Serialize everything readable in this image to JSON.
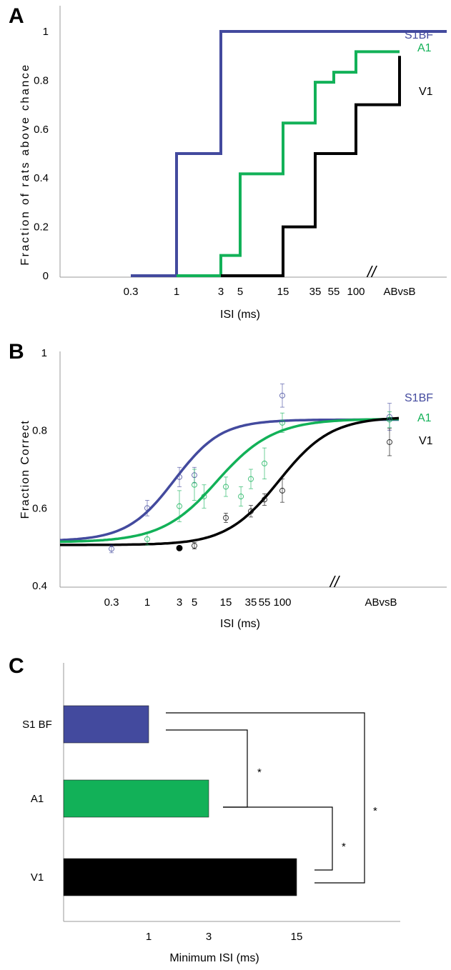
{
  "colors": {
    "s1bf": "#434a9e",
    "a1": "#12b158",
    "v1": "#000000",
    "axis": "#999999"
  },
  "chart_data": [
    {
      "panel": "A",
      "type": "line",
      "step": true,
      "ylabel": "Fraction of rats above chance",
      "xlabel": "ISI (ms)",
      "ylim": [
        0,
        1
      ],
      "yticks": [
        "0",
        "0.2",
        "0.4",
        "0.6",
        "0.8",
        "1"
      ],
      "x_categories": [
        "0.3",
        "1",
        "3",
        "5",
        "15",
        "35",
        "55",
        "100",
        "ABvsB"
      ],
      "axis_break": "//",
      "series": [
        {
          "name": "S1BF",
          "color_key": "s1bf",
          "x": [
            0.3,
            1,
            3,
            5,
            15,
            35,
            55,
            100,
            "ABvsB"
          ],
          "y": [
            0,
            0.5,
            1,
            1,
            1,
            1,
            1,
            1,
            1
          ]
        },
        {
          "name": "A1",
          "color_key": "a1",
          "x": [
            1,
            3,
            5,
            15,
            35,
            55,
            100,
            "ABvsB"
          ],
          "y": [
            0,
            0.083,
            0.417,
            0.625,
            0.792,
            0.833,
            0.917,
            0.917
          ]
        },
        {
          "name": "V1",
          "color_key": "v1",
          "x": [
            3,
            15,
            35,
            100,
            "ABvsB"
          ],
          "y": [
            0,
            0.2,
            0.5,
            0.7,
            0.9
          ]
        }
      ]
    },
    {
      "panel": "B",
      "type": "scatter",
      "ylabel": "Fraction Correct",
      "xlabel": "ISI (ms)",
      "ylim": [
        0.4,
        1
      ],
      "yticks": [
        "0.4",
        "0.6",
        "0.8",
        "1"
      ],
      "x_categories": [
        "0.3",
        "1",
        "3",
        "5",
        "15",
        "35",
        "55",
        "100",
        "ABvsB"
      ],
      "axis_break": "//",
      "series": [
        {
          "name": "S1BF",
          "color_key": "s1bf",
          "x": [
            0.3,
            1,
            3,
            5,
            100,
            "ABvsB"
          ],
          "y": [
            0.495,
            0.6,
            0.68,
            0.685,
            0.89,
            0.835
          ],
          "err": [
            0.01,
            0.02,
            0.025,
            0.02,
            0.03,
            0.035
          ],
          "fit_start": 0.515,
          "fit_end": 0.828,
          "fit_mid_logx": 0.4,
          "fit_scale": 0.35
        },
        {
          "name": "A1",
          "color_key": "a1",
          "x": [
            1,
            3,
            5,
            7,
            15,
            25,
            35,
            55,
            100,
            "ABvsB"
          ],
          "y": [
            0.52,
            0.605,
            0.66,
            0.63,
            0.655,
            0.63,
            0.675,
            0.715,
            0.82,
            0.828
          ],
          "err": [
            0.015,
            0.04,
            0.04,
            0.03,
            0.025,
            0.025,
            0.025,
            0.04,
            0.025,
            0.02
          ],
          "fit_start": 0.512,
          "fit_end": 0.83,
          "fit_mid_logx": 1.05,
          "fit_scale": 0.42
        },
        {
          "name": "V1",
          "color_key": "v1",
          "x": [
            3,
            5,
            15,
            35,
            55,
            100,
            "ABvsB"
          ],
          "y": [
            0.497,
            0.503,
            0.575,
            0.592,
            0.622,
            0.645,
            0.77
          ],
          "err": [
            0.0,
            0.008,
            0.012,
            0.015,
            0.015,
            0.03,
            0.035
          ],
          "filled_first": true,
          "fit_start": 0.505,
          "fit_end": 0.835,
          "fit_mid_logx": 1.95,
          "fit_scale": 0.38
        }
      ]
    },
    {
      "panel": "C",
      "type": "bar",
      "orientation": "horizontal",
      "xlabel": "Minimum ISI (ms)",
      "xticks": [
        "1",
        "3",
        "15"
      ],
      "categories": [
        "S1 BF",
        "A1",
        "V1"
      ],
      "values": [
        1,
        3,
        15
      ],
      "color_keys": [
        "s1bf",
        "a1",
        "v1"
      ],
      "significance": [
        {
          "pair": [
            "S1 BF",
            "A1"
          ],
          "label": "*"
        },
        {
          "pair": [
            "A1",
            "V1"
          ],
          "label": "*"
        },
        {
          "pair": [
            "S1 BF",
            "V1"
          ],
          "label": "*"
        }
      ]
    }
  ]
}
